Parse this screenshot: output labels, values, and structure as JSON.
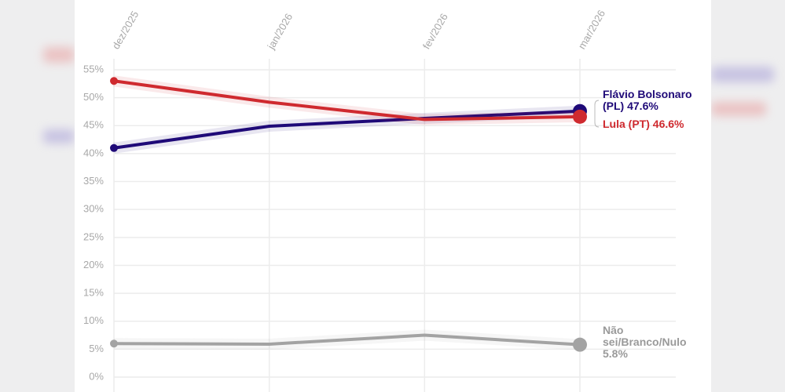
{
  "chart_data": {
    "type": "line",
    "categories": [
      "dez/2025",
      "jan/2026",
      "fev/2026",
      "mar/2026"
    ],
    "ylim": [
      0,
      55
    ],
    "yticks": [
      {
        "value": 0,
        "label": "0%"
      },
      {
        "value": 5,
        "label": "5%"
      },
      {
        "value": 10,
        "label": "10%"
      },
      {
        "value": 15,
        "label": "15%"
      },
      {
        "value": 20,
        "label": "20%"
      },
      {
        "value": 25,
        "label": "25%"
      },
      {
        "value": 30,
        "label": "30%"
      },
      {
        "value": 35,
        "label": "35%"
      },
      {
        "value": 40,
        "label": "40%"
      },
      {
        "value": 45,
        "label": "45%"
      },
      {
        "value": 50,
        "label": "50%"
      },
      {
        "value": 55,
        "label": "55%"
      }
    ],
    "grid": true,
    "series": [
      {
        "name": "Flávio Bolsonaro (PL)",
        "color": "#1f0a78",
        "values": [
          41,
          44.9,
          46.3,
          47.6
        ],
        "value_labels": [
          null,
          null,
          null,
          "47.6%"
        ]
      },
      {
        "name": "Lula (PT)",
        "color": "#cf2a2f",
        "values": [
          53,
          49.2,
          46.1,
          46.6
        ],
        "value_labels": [
          null,
          null,
          null,
          "46.6%"
        ]
      },
      {
        "name": "Não sei/Branco/Nulo",
        "color": "#a3a3a3",
        "values": [
          6,
          5.9,
          7.5,
          5.8
        ],
        "value_labels": [
          null,
          null,
          null,
          "5.8%"
        ]
      }
    ]
  }
}
